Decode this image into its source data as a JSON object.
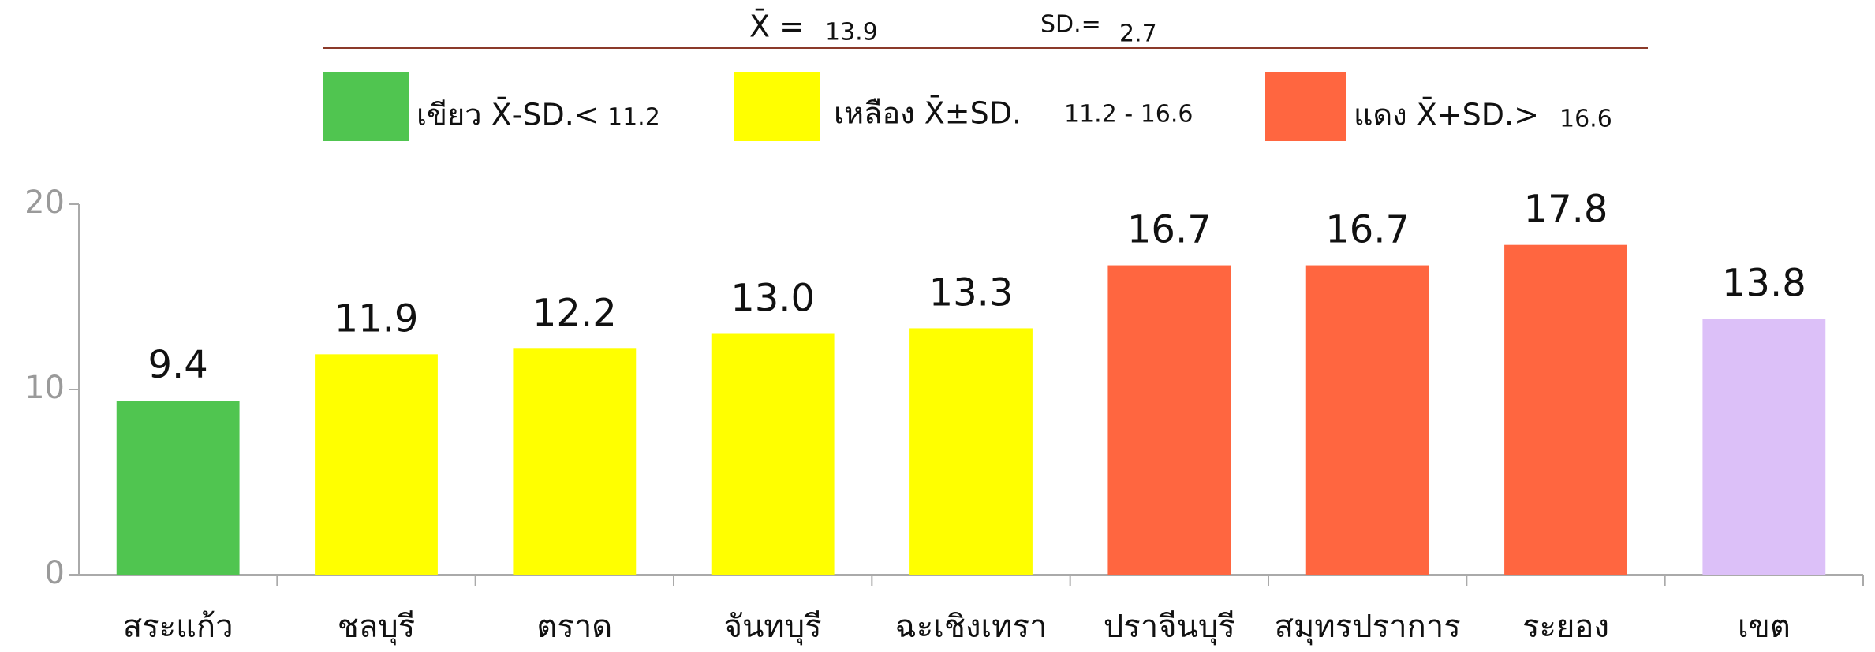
{
  "chart_data": {
    "type": "bar",
    "header": {
      "mean_label": "X̄ =",
      "mean": 13.9,
      "sd_label": "SD.=",
      "sd": 2.7
    },
    "legend": [
      {
        "label": "เขียว X̄-SD.<",
        "threshold": "11.2",
        "color": "#50c550"
      },
      {
        "label": "เหลือง X̄±SD.",
        "threshold": "11.2 - 16.6",
        "color": "#ffff00"
      },
      {
        "label": "แดง X̄+SD.>",
        "threshold": "16.6",
        "color": "#ff6640"
      }
    ],
    "categories": [
      "สระแก้ว",
      "ชลบุรี",
      "ตราด",
      "จันทบุรี",
      "ฉะเชิงเทรา",
      "ปราจีนบุรี",
      "สมุทรปราการ",
      "ระยอง",
      "เขต"
    ],
    "values": [
      9.4,
      11.9,
      12.2,
      13.0,
      13.3,
      16.7,
      16.7,
      17.8,
      13.8
    ],
    "value_labels": [
      "9.4",
      "11.9",
      "12.2",
      "13.0",
      "13.3",
      "16.7",
      "16.7",
      "17.8",
      "13.8"
    ],
    "colors": [
      "#50c550",
      "#ffff00",
      "#ffff00",
      "#ffff00",
      "#ffff00",
      "#ff6640",
      "#ff6640",
      "#ff6640",
      "#dcc0f8"
    ],
    "ylim": [
      0,
      20
    ],
    "yticks": [
      0,
      10,
      20
    ]
  }
}
